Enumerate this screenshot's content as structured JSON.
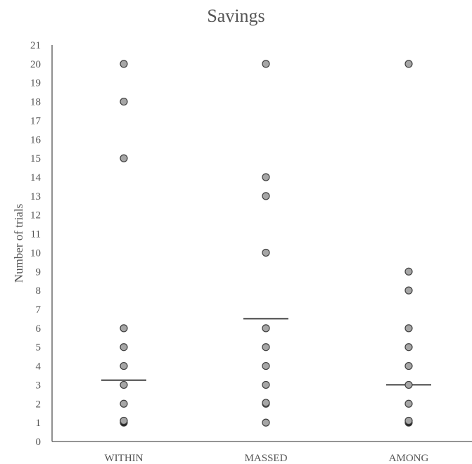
{
  "chart_data": {
    "type": "scatter",
    "title": "Savings",
    "ylabel": "Number of trials",
    "xlabel": "",
    "ylim": [
      0,
      21
    ],
    "yticks": [
      0,
      1,
      2,
      3,
      4,
      5,
      6,
      7,
      8,
      9,
      10,
      11,
      12,
      13,
      14,
      15,
      16,
      17,
      18,
      19,
      20,
      21
    ],
    "categories": [
      "WITHIN",
      "MASSED",
      "AMONG"
    ],
    "grid": false,
    "series": [
      {
        "category": "WITHIN",
        "points": [
          {
            "y": 1,
            "dark": true
          },
          {
            "y": 1.1,
            "dark": false
          },
          {
            "y": 2,
            "dark": false
          },
          {
            "y": 3,
            "dark": false
          },
          {
            "y": 4,
            "dark": false
          },
          {
            "y": 5,
            "dark": false
          },
          {
            "y": 6,
            "dark": false
          },
          {
            "y": 15,
            "dark": false
          },
          {
            "y": 18,
            "dark": false
          },
          {
            "y": 20,
            "dark": false
          }
        ],
        "mean": 3.25
      },
      {
        "category": "MASSED",
        "points": [
          {
            "y": 1,
            "dark": false
          },
          {
            "y": 2,
            "dark": false
          },
          {
            "y": 2.05,
            "dark": false
          },
          {
            "y": 3,
            "dark": false
          },
          {
            "y": 4,
            "dark": false
          },
          {
            "y": 5,
            "dark": false
          },
          {
            "y": 6,
            "dark": false
          },
          {
            "y": 10,
            "dark": false
          },
          {
            "y": 13,
            "dark": false
          },
          {
            "y": 14,
            "dark": false
          },
          {
            "y": 20,
            "dark": false
          }
        ],
        "mean": 6.5
      },
      {
        "category": "AMONG",
        "points": [
          {
            "y": 1,
            "dark": true
          },
          {
            "y": 1.1,
            "dark": false
          },
          {
            "y": 2,
            "dark": false
          },
          {
            "y": 3,
            "dark": false
          },
          {
            "y": 4,
            "dark": false
          },
          {
            "y": 5,
            "dark": false
          },
          {
            "y": 6,
            "dark": false
          },
          {
            "y": 8,
            "dark": false
          },
          {
            "y": 9,
            "dark": false
          },
          {
            "y": 20,
            "dark": false
          }
        ],
        "mean": 3.0
      }
    ],
    "colors": {
      "point_fill": "#a6a6a6",
      "point_fill_dark": "#1a1a1a",
      "point_stroke": "#404040",
      "mean_line": "#404040",
      "axis": "#555555",
      "text": "#555555"
    }
  }
}
